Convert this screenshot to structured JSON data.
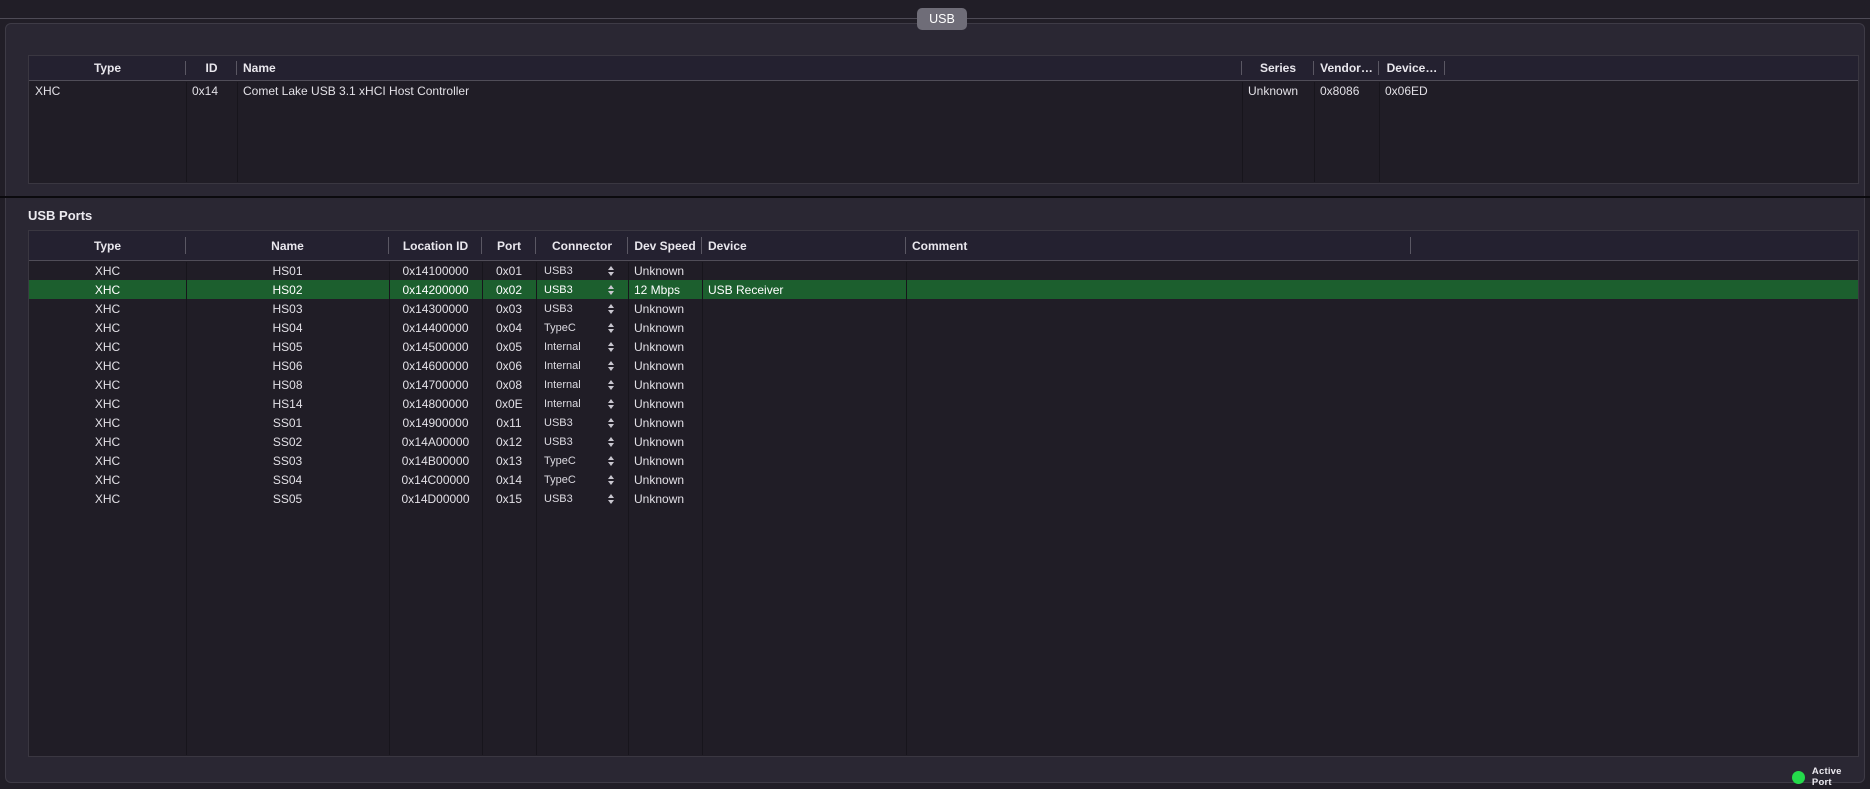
{
  "tab": {
    "label": "USB"
  },
  "colors": {
    "active_row_green": "#1c5f2e",
    "active_dot_green": "#24da4b",
    "window_background": "#211e27",
    "pane_background": "#2a2733",
    "table_background": "#201d26"
  },
  "controllers": {
    "columns": [
      "Type",
      "ID",
      "Name",
      "Series",
      "Vendor…",
      "Device…"
    ],
    "rows": [
      {
        "type": "XHC",
        "id": "0x14",
        "name": "Comet Lake USB 3.1 xHCI Host Controller",
        "series": "Unknown",
        "vendor_id": "0x8086",
        "device_id": "0x06ED"
      }
    ]
  },
  "ports_section": {
    "title": "USB Ports",
    "columns": [
      "Type",
      "Name",
      "Location ID",
      "Port",
      "Connector",
      "Dev Speed",
      "Device",
      "Comment"
    ],
    "rows": [
      {
        "type": "XHC",
        "name": "HS01",
        "location_id": "0x14100000",
        "port": "0x01",
        "connector": "USB3",
        "dev_speed": "Unknown",
        "device": "",
        "comment": "",
        "active": false
      },
      {
        "type": "XHC",
        "name": "HS02",
        "location_id": "0x14200000",
        "port": "0x02",
        "connector": "USB3",
        "dev_speed": "12 Mbps",
        "device": "USB Receiver",
        "comment": "",
        "active": true
      },
      {
        "type": "XHC",
        "name": "HS03",
        "location_id": "0x14300000",
        "port": "0x03",
        "connector": "USB3",
        "dev_speed": "Unknown",
        "device": "",
        "comment": "",
        "active": false
      },
      {
        "type": "XHC",
        "name": "HS04",
        "location_id": "0x14400000",
        "port": "0x04",
        "connector": "TypeC",
        "dev_speed": "Unknown",
        "device": "",
        "comment": "",
        "active": false
      },
      {
        "type": "XHC",
        "name": "HS05",
        "location_id": "0x14500000",
        "port": "0x05",
        "connector": "Internal",
        "dev_speed": "Unknown",
        "device": "",
        "comment": "",
        "active": false
      },
      {
        "type": "XHC",
        "name": "HS06",
        "location_id": "0x14600000",
        "port": "0x06",
        "connector": "Internal",
        "dev_speed": "Unknown",
        "device": "",
        "comment": "",
        "active": false
      },
      {
        "type": "XHC",
        "name": "HS08",
        "location_id": "0x14700000",
        "port": "0x08",
        "connector": "Internal",
        "dev_speed": "Unknown",
        "device": "",
        "comment": "",
        "active": false
      },
      {
        "type": "XHC",
        "name": "HS14",
        "location_id": "0x14800000",
        "port": "0x0E",
        "connector": "Internal",
        "dev_speed": "Unknown",
        "device": "",
        "comment": "",
        "active": false
      },
      {
        "type": "XHC",
        "name": "SS01",
        "location_id": "0x14900000",
        "port": "0x11",
        "connector": "USB3",
        "dev_speed": "Unknown",
        "device": "",
        "comment": "",
        "active": false
      },
      {
        "type": "XHC",
        "name": "SS02",
        "location_id": "0x14A00000",
        "port": "0x12",
        "connector": "USB3",
        "dev_speed": "Unknown",
        "device": "",
        "comment": "",
        "active": false
      },
      {
        "type": "XHC",
        "name": "SS03",
        "location_id": "0x14B00000",
        "port": "0x13",
        "connector": "TypeC",
        "dev_speed": "Unknown",
        "device": "",
        "comment": "",
        "active": false
      },
      {
        "type": "XHC",
        "name": "SS04",
        "location_id": "0x14C00000",
        "port": "0x14",
        "connector": "TypeC",
        "dev_speed": "Unknown",
        "device": "",
        "comment": "",
        "active": false
      },
      {
        "type": "XHC",
        "name": "SS05",
        "location_id": "0x14D00000",
        "port": "0x15",
        "connector": "USB3",
        "dev_speed": "Unknown",
        "device": "",
        "comment": "",
        "active": false
      }
    ]
  },
  "legend": {
    "active_port_label": "Active Port"
  }
}
